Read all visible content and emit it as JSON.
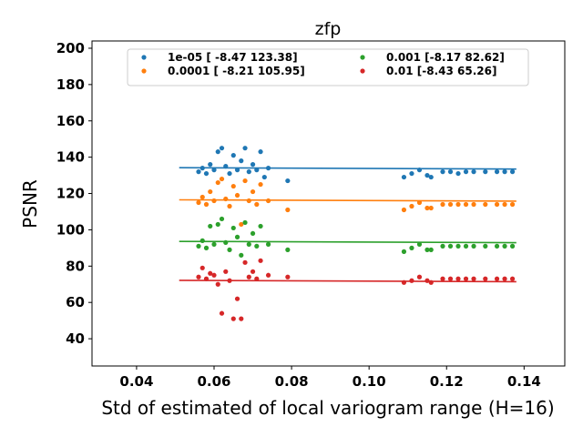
{
  "chart_data": {
    "type": "scatter",
    "title": "zfp",
    "xlabel": "Std of estimated of local variogram range (H=16)",
    "ylabel": "PSNR",
    "xlim": [
      0.0285,
      0.1505
    ],
    "ylim": [
      25,
      204
    ],
    "xticks": [
      0.04,
      0.06,
      0.08,
      0.1,
      0.12,
      0.14
    ],
    "xtick_labels": [
      "0.04",
      "0.06",
      "0.08",
      "0.10",
      "0.12",
      "0.14"
    ],
    "yticks": [
      40,
      60,
      80,
      100,
      120,
      140,
      160,
      180,
      200
    ],
    "ytick_labels": [
      "40",
      "60",
      "80",
      "100",
      "120",
      "140",
      "160",
      "180",
      "200"
    ],
    "grid": false,
    "legend": {
      "placement": "top-center",
      "columns": 2
    },
    "series": [
      {
        "name": "1e-05 [ -8.47 123.38]",
        "color": "#1f77b4",
        "fit": {
          "slope": -8.47,
          "intercept": 123.38,
          "x_range": [
            0.051,
            0.138
          ]
        },
        "points": [
          [
            0.056,
            132
          ],
          [
            0.057,
            134
          ],
          [
            0.058,
            131
          ],
          [
            0.059,
            136
          ],
          [
            0.06,
            133
          ],
          [
            0.061,
            143
          ],
          [
            0.062,
            145
          ],
          [
            0.063,
            135
          ],
          [
            0.064,
            131
          ],
          [
            0.065,
            141
          ],
          [
            0.066,
            133
          ],
          [
            0.067,
            138
          ],
          [
            0.068,
            145
          ],
          [
            0.069,
            132
          ],
          [
            0.07,
            136
          ],
          [
            0.071,
            133
          ],
          [
            0.072,
            143
          ],
          [
            0.073,
            129
          ],
          [
            0.074,
            134
          ],
          [
            0.079,
            127
          ],
          [
            0.109,
            129
          ],
          [
            0.111,
            131
          ],
          [
            0.113,
            133
          ],
          [
            0.115,
            130
          ],
          [
            0.116,
            129
          ],
          [
            0.119,
            132
          ],
          [
            0.121,
            132
          ],
          [
            0.123,
            131
          ],
          [
            0.125,
            132
          ],
          [
            0.127,
            132
          ],
          [
            0.13,
            132
          ],
          [
            0.133,
            132
          ],
          [
            0.135,
            132
          ],
          [
            0.137,
            132
          ]
        ]
      },
      {
        "name": "0.0001 [ -8.21 105.95]",
        "color": "#ff7f0e",
        "fit": {
          "slope": -8.21,
          "intercept": 105.95,
          "x_range": [
            0.051,
            0.138
          ]
        },
        "points": [
          [
            0.056,
            115
          ],
          [
            0.057,
            118
          ],
          [
            0.058,
            114
          ],
          [
            0.059,
            121
          ],
          [
            0.06,
            116
          ],
          [
            0.061,
            126
          ],
          [
            0.062,
            128
          ],
          [
            0.063,
            117
          ],
          [
            0.064,
            113
          ],
          [
            0.065,
            124
          ],
          [
            0.066,
            119
          ],
          [
            0.067,
            103
          ],
          [
            0.068,
            127
          ],
          [
            0.069,
            116
          ],
          [
            0.07,
            121
          ],
          [
            0.071,
            114
          ],
          [
            0.072,
            125
          ],
          [
            0.074,
            116
          ],
          [
            0.079,
            111
          ],
          [
            0.109,
            111
          ],
          [
            0.111,
            113
          ],
          [
            0.113,
            115
          ],
          [
            0.115,
            112
          ],
          [
            0.116,
            112
          ],
          [
            0.119,
            114
          ],
          [
            0.121,
            114
          ],
          [
            0.123,
            114
          ],
          [
            0.125,
            114
          ],
          [
            0.127,
            114
          ],
          [
            0.13,
            114
          ],
          [
            0.133,
            114
          ],
          [
            0.135,
            114
          ],
          [
            0.137,
            114
          ]
        ]
      },
      {
        "name": "0.001 [-8.17 82.62]",
        "color": "#2ca02c",
        "fit": {
          "slope": -8.17,
          "intercept": 82.62,
          "x_range": [
            0.051,
            0.138
          ]
        },
        "points": [
          [
            0.056,
            91
          ],
          [
            0.057,
            94
          ],
          [
            0.058,
            90
          ],
          [
            0.059,
            102
          ],
          [
            0.06,
            92
          ],
          [
            0.061,
            103
          ],
          [
            0.062,
            106
          ],
          [
            0.063,
            93
          ],
          [
            0.064,
            89
          ],
          [
            0.065,
            101
          ],
          [
            0.066,
            96
          ],
          [
            0.067,
            86
          ],
          [
            0.068,
            104
          ],
          [
            0.069,
            92
          ],
          [
            0.07,
            98
          ],
          [
            0.071,
            91
          ],
          [
            0.072,
            102
          ],
          [
            0.074,
            92
          ],
          [
            0.079,
            89
          ],
          [
            0.109,
            88
          ],
          [
            0.111,
            90
          ],
          [
            0.113,
            92
          ],
          [
            0.115,
            89
          ],
          [
            0.116,
            89
          ],
          [
            0.119,
            91
          ],
          [
            0.121,
            91
          ],
          [
            0.123,
            91
          ],
          [
            0.125,
            91
          ],
          [
            0.127,
            91
          ],
          [
            0.13,
            91
          ],
          [
            0.133,
            91
          ],
          [
            0.135,
            91
          ],
          [
            0.137,
            91
          ]
        ]
      },
      {
        "name": "0.01 [-8.43 65.26]",
        "color": "#d62728",
        "fit": {
          "slope": -8.43,
          "intercept": 65.26,
          "x_range": [
            0.051,
            0.138
          ]
        },
        "points": [
          [
            0.056,
            74
          ],
          [
            0.057,
            79
          ],
          [
            0.058,
            73
          ],
          [
            0.059,
            76
          ],
          [
            0.06,
            75
          ],
          [
            0.061,
            70
          ],
          [
            0.062,
            54
          ],
          [
            0.063,
            77
          ],
          [
            0.064,
            72
          ],
          [
            0.065,
            51
          ],
          [
            0.066,
            62
          ],
          [
            0.067,
            51
          ],
          [
            0.068,
            82
          ],
          [
            0.069,
            74
          ],
          [
            0.07,
            77
          ],
          [
            0.071,
            73
          ],
          [
            0.072,
            83
          ],
          [
            0.074,
            75
          ],
          [
            0.079,
            74
          ],
          [
            0.109,
            71
          ],
          [
            0.111,
            72
          ],
          [
            0.113,
            74
          ],
          [
            0.115,
            72
          ],
          [
            0.116,
            71
          ],
          [
            0.119,
            73
          ],
          [
            0.121,
            73
          ],
          [
            0.123,
            73
          ],
          [
            0.125,
            73
          ],
          [
            0.127,
            73
          ],
          [
            0.13,
            73
          ],
          [
            0.133,
            73
          ],
          [
            0.135,
            73
          ],
          [
            0.137,
            73
          ]
        ]
      }
    ]
  }
}
